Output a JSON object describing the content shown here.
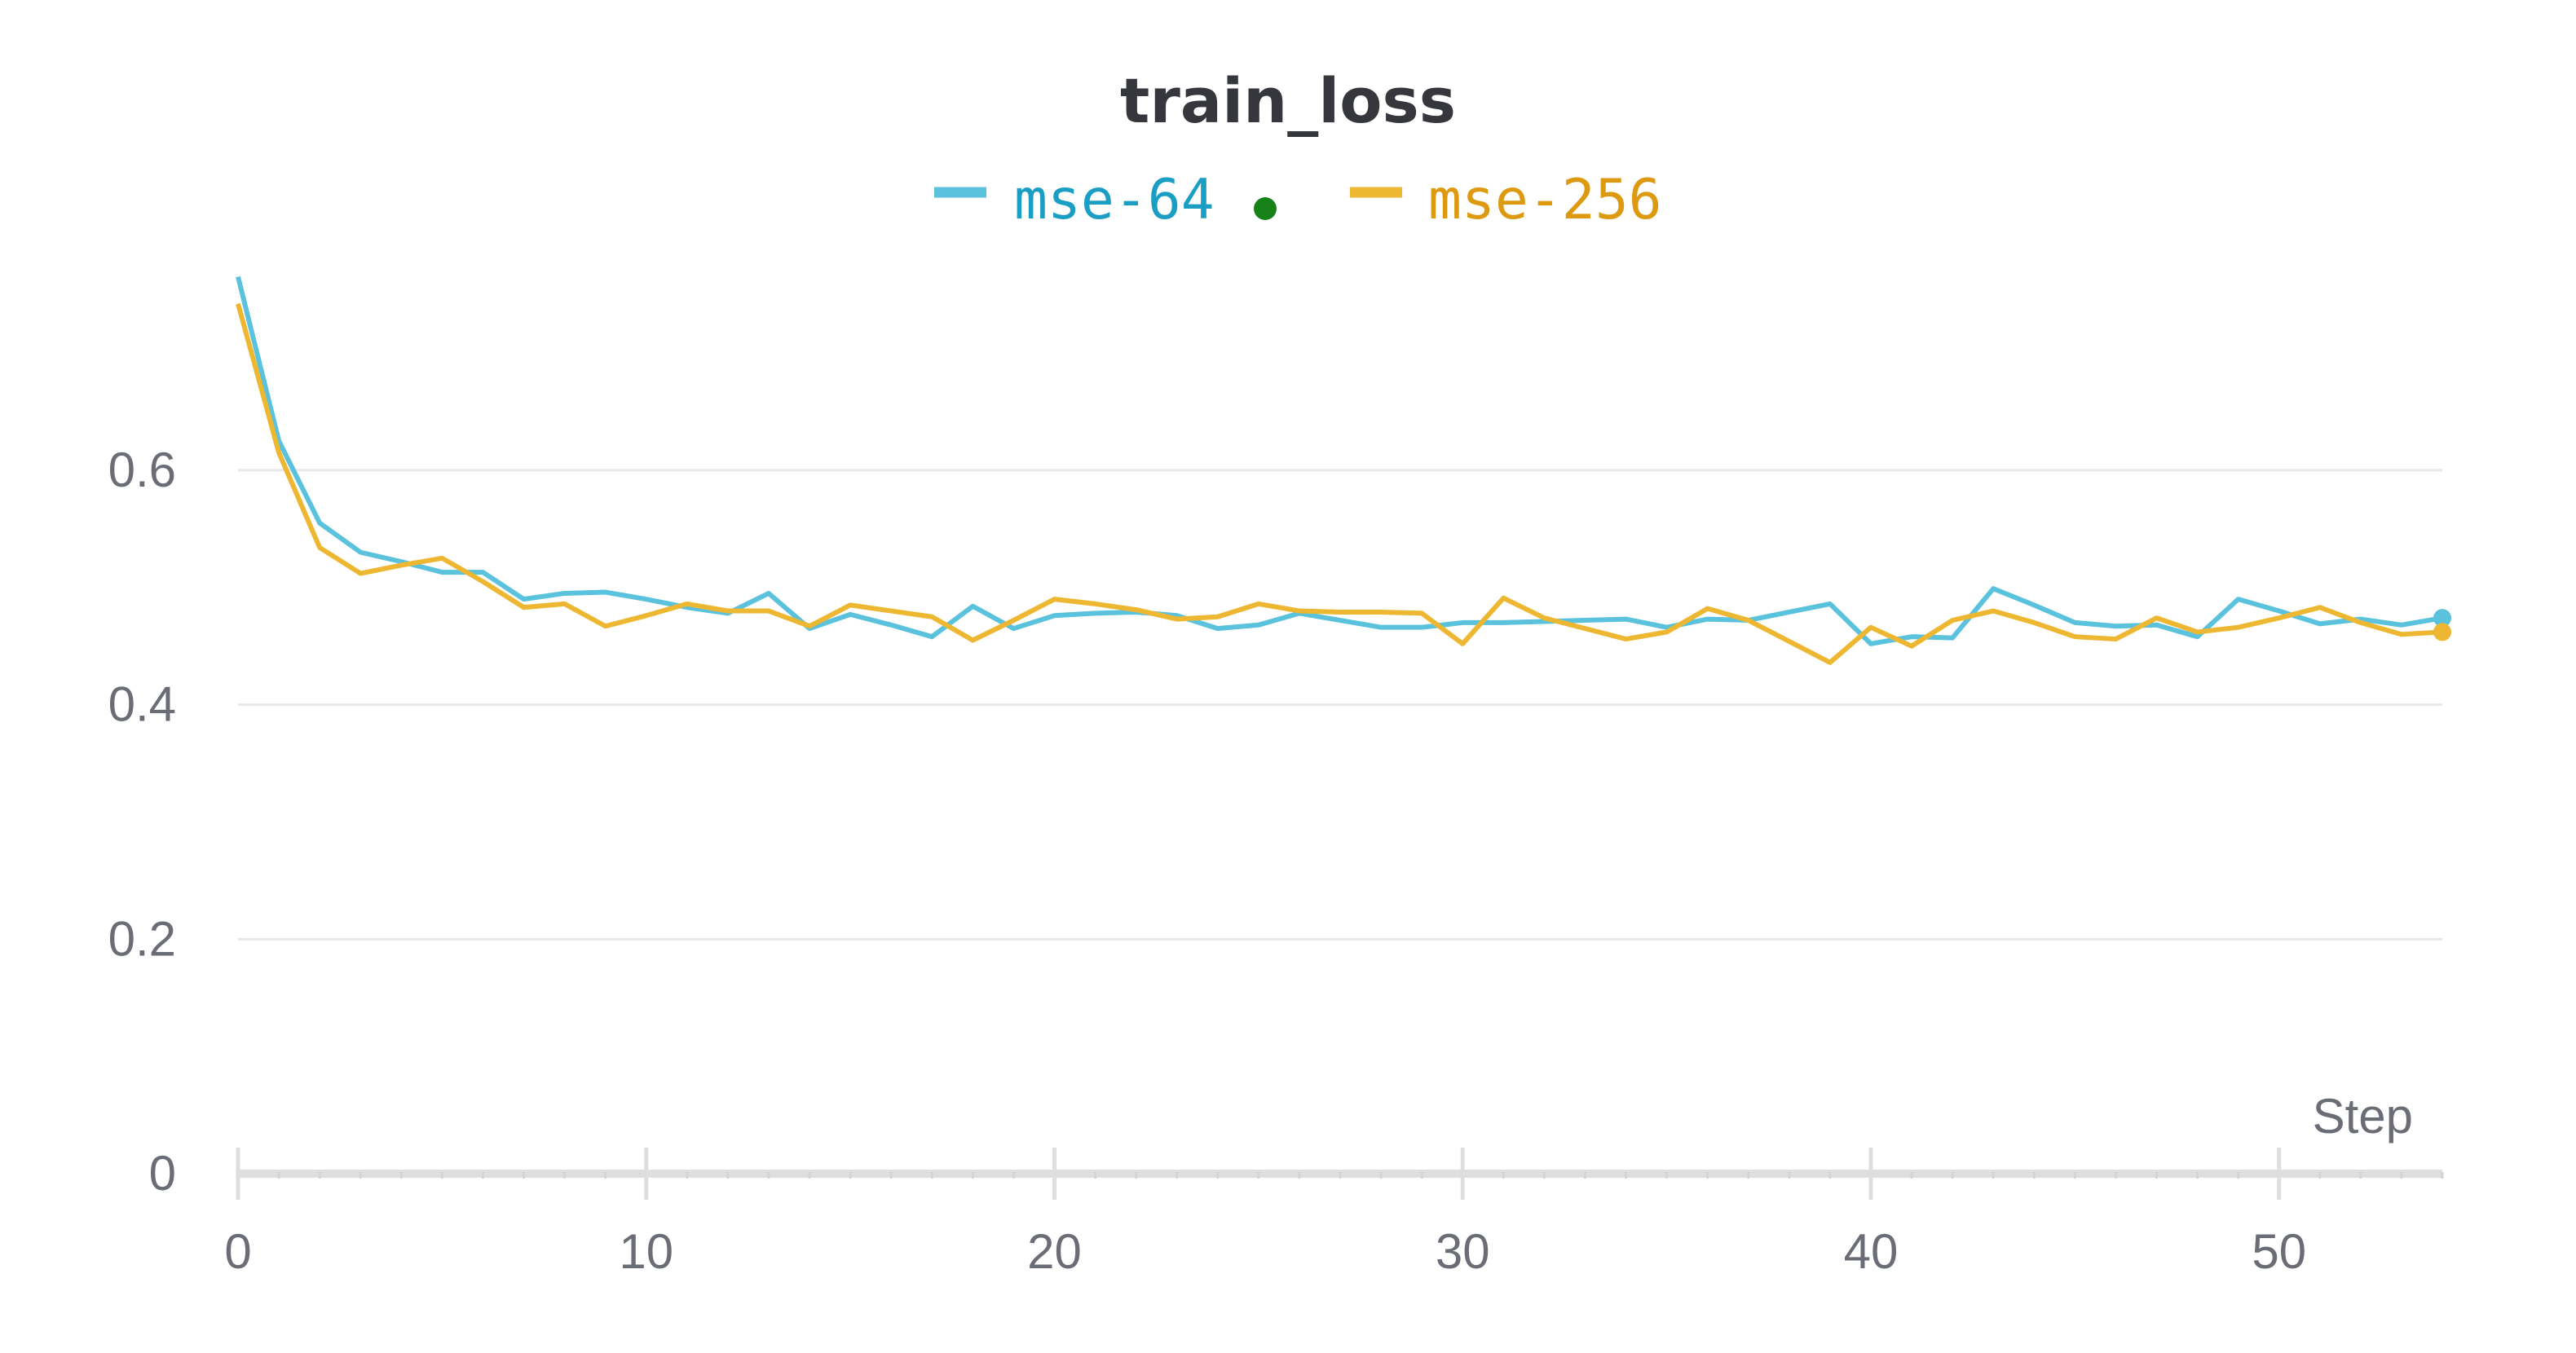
{
  "chart_data": {
    "type": "line",
    "title": "train_loss",
    "xlabel": "Step",
    "ylabel": "",
    "xlim": [
      0,
      54
    ],
    "ylim": [
      0,
      0.78
    ],
    "xticks": [
      0,
      10,
      20,
      30,
      40,
      50
    ],
    "xtick_labels": [
      "0",
      "10",
      "20",
      "30",
      "40",
      "50"
    ],
    "yticks": [
      0,
      0.2,
      0.4,
      0.6
    ],
    "ytick_labels": [
      "0",
      "0.2",
      "0.4",
      "0.6"
    ],
    "grid": true,
    "legend_position": "top-center",
    "x": [
      0,
      1,
      2,
      3,
      4,
      5,
      6,
      7,
      8,
      9,
      10,
      11,
      12,
      13,
      14,
      15,
      16,
      17,
      18,
      19,
      20,
      21,
      22,
      23,
      24,
      25,
      26,
      27,
      28,
      29,
      30,
      31,
      32,
      33,
      34,
      35,
      36,
      37,
      38,
      39,
      40,
      41,
      42,
      43,
      44,
      45,
      46,
      47,
      48,
      49,
      50,
      51,
      52,
      53,
      54
    ],
    "series": [
      {
        "name": "mse-64",
        "color": "#5bc2dd",
        "text_color": "#1a9ec3",
        "values": [
          0.765,
          0.625,
          0.555,
          0.53,
          0.522,
          0.513,
          0.513,
          0.49,
          0.495,
          0.496,
          0.49,
          0.483,
          0.478,
          0.495,
          0.465,
          0.477,
          0.468,
          0.458,
          0.484,
          0.465,
          0.476,
          0.478,
          0.479,
          0.476,
          0.465,
          0.468,
          0.478,
          0.472,
          0.466,
          0.466,
          0.47,
          0.47,
          0.471,
          0.472,
          0.473,
          0.466,
          0.473,
          0.472,
          0.479,
          0.486,
          0.452,
          0.458,
          0.457,
          0.499,
          0.485,
          0.47,
          0.467,
          0.468,
          0.458,
          0.49,
          0.48,
          0.469,
          0.473,
          0.468,
          0.474
        ]
      },
      {
        "name": "mse-256",
        "color": "#edb732",
        "text_color": "#dd9a10",
        "values": [
          0.742,
          0.615,
          0.534,
          0.512,
          0.519,
          0.525,
          0.505,
          0.483,
          0.486,
          0.467,
          0.476,
          0.486,
          0.48,
          0.48,
          0.467,
          0.485,
          0.48,
          0.475,
          0.455,
          0.472,
          0.49,
          0.486,
          0.481,
          0.473,
          0.475,
          0.486,
          0.48,
          0.479,
          0.479,
          0.478,
          0.452,
          0.491,
          0.474,
          0.465,
          0.456,
          0.462,
          0.482,
          0.472,
          0.454,
          0.436,
          0.466,
          0.45,
          0.472,
          0.48,
          0.47,
          0.458,
          0.456,
          0.474,
          0.462,
          0.466,
          0.474,
          0.483,
          0.47,
          0.46,
          0.462
        ]
      }
    ],
    "legend_marker_color": "#17821a"
  }
}
